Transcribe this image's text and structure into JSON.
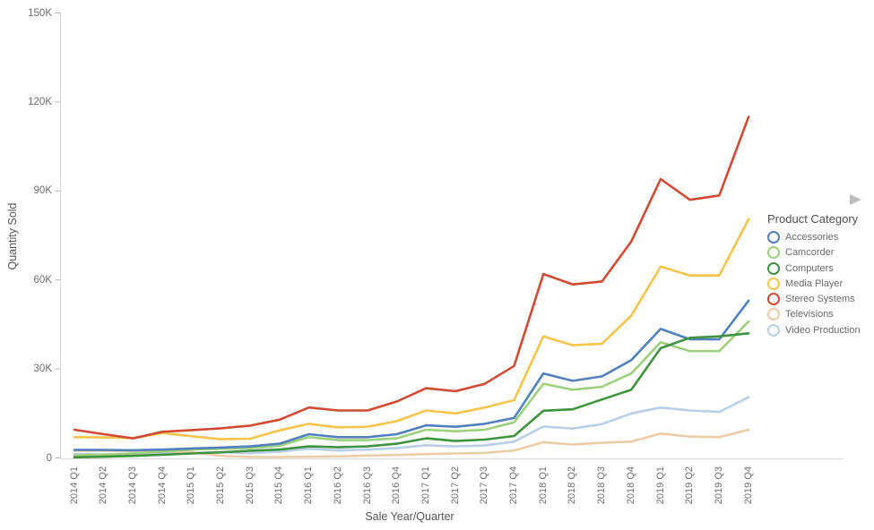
{
  "chart_data": {
    "type": "line",
    "title": "",
    "xlabel": "Sale Year/Quarter",
    "ylabel": "Quantity Sold",
    "ylim": [
      0,
      150000
    ],
    "grid": false,
    "legend_position": "right",
    "legend_title": "Product Category",
    "yticks": [
      {
        "value": 0,
        "label": "0"
      },
      {
        "value": 30000,
        "label": "30K"
      },
      {
        "value": 60000,
        "label": "60K"
      },
      {
        "value": 90000,
        "label": "90K"
      },
      {
        "value": 120000,
        "label": "120K"
      },
      {
        "value": 150000,
        "label": "150K"
      }
    ],
    "categories": [
      "2014 Q1",
      "2014 Q2",
      "2014 Q3",
      "2014 Q4",
      "2015 Q1",
      "2015 Q2",
      "2015 Q3",
      "2015 Q4",
      "2016 Q1",
      "2016 Q2",
      "2016 Q3",
      "2016 Q4",
      "2017 Q1",
      "2017 Q2",
      "2017 Q3",
      "2017 Q4",
      "2018 Q1",
      "2018 Q2",
      "2018 Q3",
      "2018 Q4",
      "2019 Q1",
      "2019 Q2",
      "2019 Q3",
      "2019 Q4"
    ],
    "series": [
      {
        "name": "Accessories",
        "color": "#5180bd",
        "values": [
          2700,
          2700,
          2600,
          2800,
          3200,
          3500,
          3900,
          4800,
          8000,
          7000,
          7000,
          8000,
          11000,
          10500,
          11500,
          13500,
          28500,
          26000,
          27500,
          33000,
          43500,
          40000,
          40000,
          53000
        ]
      },
      {
        "name": "Camcorder",
        "color": "#9dd07c",
        "values": [
          800,
          1100,
          1500,
          2100,
          2800,
          3100,
          3300,
          4100,
          7000,
          6000,
          6000,
          6600,
          9500,
          9000,
          9500,
          12000,
          25000,
          23000,
          24000,
          28500,
          39000,
          36000,
          36000,
          46000
        ]
      },
      {
        "name": "Computers",
        "color": "#3f9240",
        "values": [
          200,
          400,
          700,
          1100,
          1500,
          1900,
          2400,
          2800,
          3900,
          3600,
          3900,
          4800,
          6600,
          5700,
          6200,
          7400,
          15900,
          16400,
          19700,
          23000,
          37000,
          40500,
          41000,
          42000
        ]
      },
      {
        "name": "Media Player",
        "color": "#f5c44d",
        "values": [
          7000,
          6900,
          6700,
          8400,
          7300,
          6300,
          6500,
          9300,
          11500,
          10300,
          10500,
          12400,
          16000,
          15000,
          17000,
          19500,
          41000,
          38000,
          38500,
          48000,
          64500,
          61500,
          61500,
          80500
        ]
      },
      {
        "name": "Stereo Systems",
        "color": "#d04a35",
        "values": [
          9500,
          8000,
          6600,
          8800,
          9400,
          10000,
          10900,
          12900,
          17000,
          16000,
          16000,
          19000,
          23500,
          22500,
          25000,
          31000,
          62000,
          58500,
          59500,
          73000,
          94000,
          87000,
          88500,
          115000
        ]
      },
      {
        "name": "Televisions",
        "color": "#e9cda6",
        "values": [
          2400,
          2400,
          2300,
          2300,
          1900,
          700,
          300,
          300,
          400,
          500,
          800,
          1000,
          1300,
          1500,
          1700,
          2500,
          5300,
          4500,
          5100,
          5500,
          8200,
          7200,
          7000,
          9500
        ]
      },
      {
        "name": "Video Production",
        "color": "#b9cfe6",
        "values": [
          1300,
          1200,
          1200,
          1400,
          1700,
          1900,
          1600,
          2100,
          3100,
          2500,
          2800,
          3300,
          4300,
          3900,
          4200,
          5500,
          10600,
          9900,
          11400,
          15000,
          17000,
          16000,
          15500,
          20500
        ]
      }
    ]
  },
  "icons": {
    "legend_scroll_arrow": "right-triangle"
  }
}
